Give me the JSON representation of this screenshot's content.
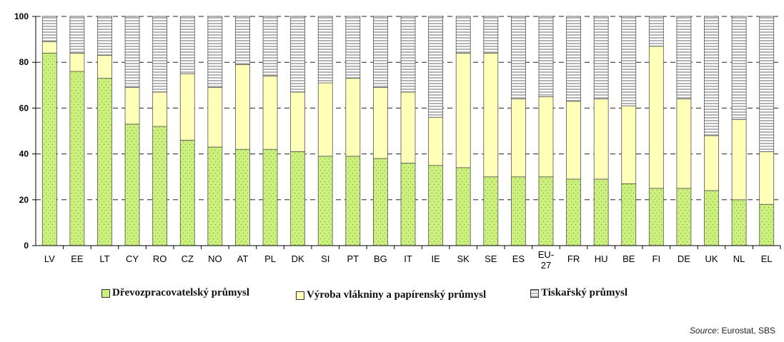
{
  "chart_data": {
    "type": "bar",
    "stacked": true,
    "categories": [
      "LV",
      "EE",
      "LT",
      "CY",
      "RO",
      "CZ",
      "NO",
      "AT",
      "PL",
      "DK",
      "SI",
      "PT",
      "BG",
      "IT",
      "IE",
      "SK",
      "SE",
      "ES",
      "EU-27",
      "FR",
      "HU",
      "BE",
      "FI",
      "DE",
      "UK",
      "NL",
      "EL"
    ],
    "series": [
      {
        "name": "Dřevozpracovatelský průmysl",
        "color": "#ccf07e",
        "pattern": "dots",
        "values": [
          84,
          76,
          73,
          53,
          52,
          46,
          43,
          42,
          42,
          41,
          39,
          39,
          38,
          36,
          35,
          34,
          30,
          30,
          30,
          29,
          29,
          27,
          25,
          25,
          24,
          20,
          18
        ]
      },
      {
        "name": "Výroba vlákniny a papírenský průmysl",
        "color": "#ffffb8",
        "pattern": "solid",
        "values": [
          5,
          8,
          10,
          16,
          15,
          29,
          26,
          37,
          32,
          26,
          32,
          34,
          31,
          31,
          21,
          50,
          54,
          34,
          35,
          34,
          35,
          34,
          62,
          39,
          24,
          35,
          23
        ]
      },
      {
        "name": "Tiskařský průmysl",
        "color": "#ffffff",
        "pattern": "hstripes",
        "values": [
          11,
          16,
          17,
          31,
          33,
          25,
          31,
          21,
          26,
          33,
          29,
          27,
          31,
          33,
          44,
          16,
          16,
          36,
          35,
          37,
          36,
          39,
          13,
          36,
          52,
          45,
          59
        ]
      }
    ],
    "ylim": [
      0,
      100
    ],
    "yticks": [
      0,
      20,
      40,
      60,
      80,
      100
    ],
    "grid": "dashed-horizontal",
    "legend_position": "bottom"
  },
  "source": {
    "label": "Source",
    "text": ": Eurostat, SBS"
  }
}
